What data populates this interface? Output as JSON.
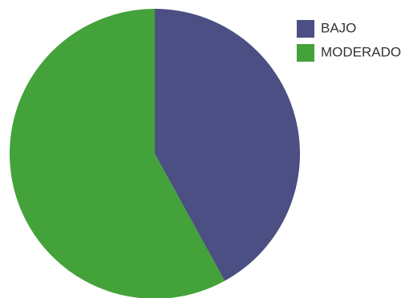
{
  "chart_data": {
    "type": "pie",
    "categories": [
      "BAJO",
      "MODERADO"
    ],
    "values": [
      42,
      58
    ],
    "colors": [
      "#4b4f83",
      "#43a23a"
    ],
    "legend": "top-right"
  }
}
